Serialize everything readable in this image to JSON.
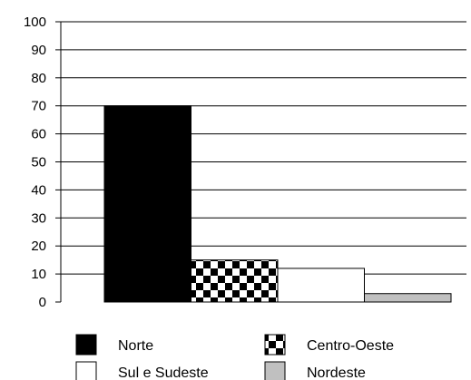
{
  "chart_data": {
    "type": "bar",
    "title": "",
    "xlabel": "",
    "ylabel": "",
    "ylim": [
      0,
      100
    ],
    "yticks": [
      0,
      10,
      20,
      30,
      40,
      50,
      60,
      70,
      80,
      90,
      100
    ],
    "grid": "horizontal",
    "legend_position": "bottom",
    "series": [
      {
        "name": "Norte",
        "value": 70,
        "fill": "solid",
        "color": "#000000"
      },
      {
        "name": "Centro-Oeste",
        "value": 15,
        "fill": "checker",
        "color": "#000000"
      },
      {
        "name": "Sul e Sudeste",
        "value": 12,
        "fill": "solid",
        "color": "#ffffff"
      },
      {
        "name": "Nordeste",
        "value": 3,
        "fill": "solid",
        "color": "#c0c0c0"
      }
    ],
    "legend_order": [
      "Norte",
      "Centro-Oeste",
      "Sul e Sudeste",
      "Nordeste"
    ]
  }
}
